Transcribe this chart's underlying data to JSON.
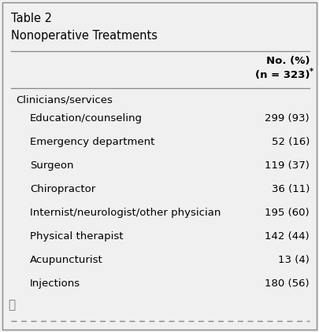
{
  "title_line1": "Table 2",
  "title_line2": "Nonoperative Treatments",
  "header_line1": "No. (%)",
  "header_line2": "(n = 323)",
  "header_asterisk": "*",
  "section_label": "Clinicians/services",
  "rows": [
    [
      "Education/counseling",
      "299 (93)"
    ],
    [
      "Emergency department",
      "52 (16)"
    ],
    [
      "Surgeon",
      "119 (37)"
    ],
    [
      "Chiropractor",
      "36 (11)"
    ],
    [
      "Internist/neurologist/other physician",
      "195 (60)"
    ],
    [
      "Physical therapist",
      "142 (44)"
    ],
    [
      "Acupuncturist",
      "13 (4)"
    ],
    [
      "Injections",
      "180 (56)"
    ]
  ],
  "background_color": "#f0f0f0",
  "border_color": "#888888",
  "text_color": "#000000",
  "line_color": "#888888",
  "dashed_line_color": "#888888",
  "figsize": [
    4.05,
    4.22
  ],
  "dpi": 100
}
